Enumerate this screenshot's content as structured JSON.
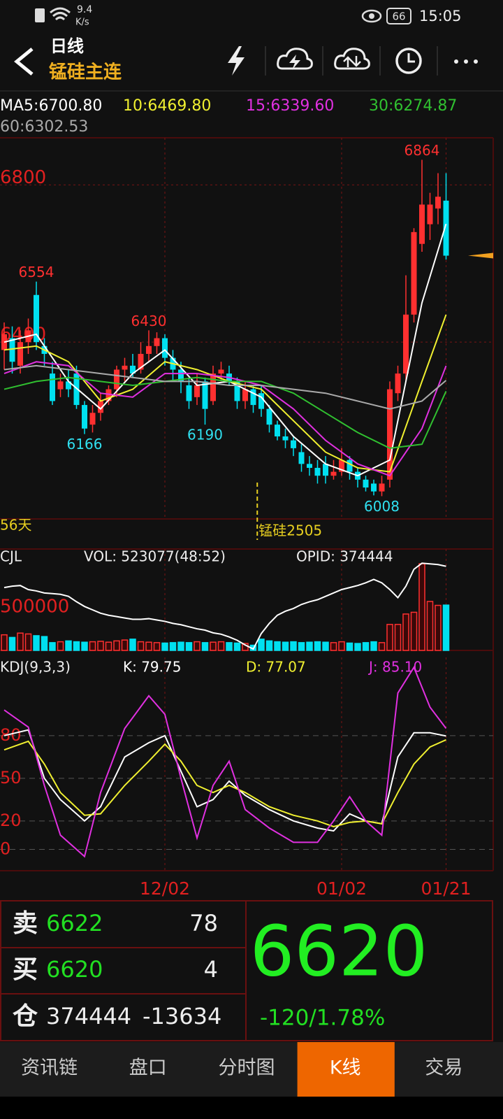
{
  "status_bar": {
    "speed": "9.4",
    "speed_unit": "K/s",
    "battery": "66",
    "time": "15:05"
  },
  "header": {
    "period": "日线",
    "title": "锰硅主连"
  },
  "chart_data": [
    {
      "type": "candlestick",
      "categories": [
        null,
        null,
        null,
        null,
        null,
        null,
        null,
        null,
        null,
        null,
        null,
        null,
        null,
        null,
        null,
        null,
        null,
        null,
        null,
        null,
        "12/02",
        null,
        null,
        null,
        null,
        null,
        null,
        null,
        null,
        null,
        null,
        null,
        null,
        null,
        null,
        null,
        null,
        null,
        null,
        null,
        null,
        null,
        "01/02",
        null,
        null,
        null,
        null,
        null,
        null,
        null,
        null,
        null,
        null,
        null,
        null,
        "01/21"
      ],
      "open": [
        6380,
        6410,
        6340,
        6400,
        6520,
        6390,
        6320,
        6280,
        6300,
        6320,
        6240,
        6190,
        6220,
        6250,
        6280,
        6330,
        6340,
        6330,
        6370,
        6390,
        6410,
        6360,
        6330,
        6290,
        6260,
        6300,
        6250,
        6320,
        6320,
        6300,
        6250,
        6280,
        6270,
        6230,
        6190,
        6160,
        6150,
        6120,
        6090,
        6080,
        6090,
        6060,
        6070,
        6100,
        6070,
        6050,
        6040,
        6020,
        6050,
        6270,
        6320,
        6470,
        6650,
        6700,
        6740,
        6760
      ],
      "close": [
        6420,
        6350,
        6400,
        6430,
        6400,
        6370,
        6250,
        6300,
        6280,
        6240,
        6180,
        6220,
        6250,
        6280,
        6330,
        6340,
        6320,
        6370,
        6390,
        6410,
        6360,
        6330,
        6300,
        6250,
        6290,
        6230,
        6320,
        6330,
        6300,
        6250,
        6280,
        6240,
        6230,
        6190,
        6160,
        6150,
        6130,
        6090,
        6080,
        6060,
        6060,
        6070,
        6100,
        6070,
        6050,
        6030,
        6020,
        6040,
        6280,
        6320,
        6470,
        6680,
        6750,
        6750,
        6770,
        6620
      ],
      "high": [
        6450,
        6440,
        6430,
        6460,
        6554,
        6410,
        6350,
        6320,
        6330,
        6340,
        6250,
        6240,
        6270,
        6290,
        6340,
        6360,
        6370,
        6400,
        6430,
        6425,
        6420,
        6380,
        6350,
        6310,
        6320,
        6310,
        6340,
        6350,
        6340,
        6310,
        6300,
        6290,
        6290,
        6240,
        6200,
        6180,
        6160,
        6140,
        6110,
        6100,
        6110,
        6100,
        6130,
        6110,
        6080,
        6060,
        6050,
        6060,
        6300,
        6340,
        6570,
        6690,
        6864,
        6780,
        6830,
        6830
      ],
      "low": [
        6330,
        6320,
        6320,
        6370,
        6380,
        6340,
        6240,
        6260,
        6260,
        6230,
        6166,
        6170,
        6200,
        6240,
        6260,
        6300,
        6310,
        6320,
        6350,
        6370,
        6340,
        6300,
        6270,
        6230,
        6240,
        6190,
        6240,
        6300,
        6290,
        6230,
        6230,
        6220,
        6210,
        6170,
        6150,
        6130,
        6110,
        6070,
        6060,
        6040,
        6040,
        6050,
        6060,
        6050,
        6030,
        6020,
        6010,
        6008,
        6030,
        6250,
        6300,
        6450,
        6630,
        6660,
        6700,
        6610
      ],
      "up_color": "#ff3030",
      "down_color": "#00e0f0",
      "ylim": [
        5950,
        6920
      ],
      "yticks": [
        6400,
        6800
      ],
      "grid": true,
      "series": [
        {
          "name": "MA5:6700.80",
          "color": "#ffffff",
          "x": [
            0,
            4,
            8,
            12,
            16,
            20,
            24,
            28,
            32,
            36,
            40,
            44,
            48,
            52,
            55
          ],
          "values": [
            6400,
            6420,
            6300,
            6230,
            6320,
            6380,
            6290,
            6300,
            6260,
            6160,
            6090,
            6060,
            6100,
            6500,
            6700.8
          ]
        },
        {
          "name": "10:6469.80",
          "color": "#f0f030",
          "x": [
            0,
            4,
            8,
            12,
            16,
            20,
            24,
            28,
            32,
            36,
            40,
            44,
            48,
            52,
            55
          ],
          "values": [
            6380,
            6390,
            6350,
            6250,
            6280,
            6350,
            6330,
            6300,
            6280,
            6200,
            6120,
            6080,
            6070,
            6300,
            6469.8
          ]
        },
        {
          "name": "15:6339.60",
          "color": "#e030e0",
          "x": [
            0,
            4,
            8,
            12,
            16,
            20,
            24,
            28,
            32,
            36,
            40,
            44,
            48,
            52,
            55
          ],
          "values": [
            6320,
            6350,
            6340,
            6270,
            6260,
            6320,
            6320,
            6310,
            6290,
            6230,
            6150,
            6090,
            6060,
            6180,
            6339.6
          ]
        },
        {
          "name": "30:6274.87",
          "color": "#30c030",
          "x": [
            0,
            4,
            8,
            12,
            16,
            20,
            24,
            28,
            32,
            36,
            40,
            44,
            48,
            52,
            55
          ],
          "values": [
            6280,
            6300,
            6310,
            6300,
            6290,
            6300,
            6310,
            6300,
            6300,
            6270,
            6220,
            6170,
            6130,
            6140,
            6274.87
          ]
        },
        {
          "name": "60:6302.53",
          "color": "#aaaaaa",
          "x": [
            0,
            4,
            8,
            12,
            16,
            20,
            24,
            28,
            32,
            36,
            40,
            44,
            48,
            52,
            55
          ],
          "values": [
            6330,
            6340,
            6330,
            6320,
            6310,
            6300,
            6300,
            6290,
            6290,
            6280,
            6270,
            6250,
            6230,
            6250,
            6302.53
          ]
        }
      ],
      "annotations": [
        {
          "x": 4,
          "value": 6554
        },
        {
          "x": 10,
          "value": 6166
        },
        {
          "x": 18,
          "value": 6430
        },
        {
          "x": 25,
          "value": 6190
        },
        {
          "x": 47,
          "value": 6008
        },
        {
          "x": 52,
          "value": 6864
        }
      ],
      "markers": [
        {
          "x": 31.5,
          "label": "锰硅2505"
        }
      ],
      "period_label": "56天"
    },
    {
      "type": "bar",
      "title": "CJL",
      "ylim": [
        0,
        1170000
      ],
      "yticks": [
        500000
      ],
      "y2lim": [
        250000,
        400000
      ],
      "series": [
        {
          "name": "VOL: 523077(48:52)",
          "values": [
            180000,
            150000,
            200000,
            190000,
            170000,
            160000,
            90000,
            100000,
            110000,
            100000,
            95000,
            100000,
            105000,
            95000,
            110000,
            120000,
            130000,
            100000,
            95000,
            90000,
            85000,
            90000,
            95000,
            90000,
            100000,
            90000,
            95000,
            100000,
            90000,
            85000,
            80000,
            60000,
            130000,
            110000,
            100000,
            95000,
            100000,
            90000,
            95000,
            100000,
            95000,
            90000,
            100000,
            85000,
            80000,
            90000,
            100000,
            90000,
            300000,
            300000,
            420000,
            440000,
            1000000,
            565000,
            520000,
            523077
          ]
        },
        {
          "name": "OPID: 374444",
          "color": "#ffffff",
          "axis": "y2",
          "values": [
            343000,
            345000,
            346000,
            340000,
            338000,
            335000,
            334000,
            333000,
            330000,
            322000,
            315000,
            310000,
            305000,
            302000,
            300000,
            298000,
            296000,
            296000,
            297000,
            295000,
            293000,
            290000,
            288000,
            285000,
            282000,
            280000,
            276000,
            274000,
            270000,
            265000,
            258000,
            252000,
            275000,
            290000,
            302000,
            308000,
            312000,
            318000,
            322000,
            325000,
            330000,
            335000,
            340000,
            343000,
            346000,
            350000,
            355000,
            350000,
            340000,
            328000,
            345000,
            370000,
            379000,
            378000,
            377000,
            374444
          ]
        }
      ]
    },
    {
      "type": "line",
      "title": "KDJ(9,3,3)",
      "ylim": [
        -15,
        135
      ],
      "yticks": [
        80,
        50,
        20,
        0
      ],
      "grid": true,
      "series": [
        {
          "name": "K: 79.75",
          "color": "#ffffff",
          "x": [
            0,
            3,
            5,
            7,
            10,
            12,
            15,
            18,
            20,
            22,
            24,
            26,
            28,
            30,
            33,
            36,
            39,
            41,
            43,
            45,
            47,
            49,
            51,
            53,
            55
          ],
          "values": [
            80,
            84,
            50,
            35,
            20,
            30,
            65,
            75,
            80,
            55,
            30,
            35,
            48,
            38,
            28,
            20,
            15,
            13,
            25,
            20,
            18,
            65,
            82,
            82,
            79.75
          ]
        },
        {
          "name": "D: 77.07",
          "color": "#f0f030",
          "x": [
            0,
            3,
            5,
            7,
            10,
            12,
            15,
            18,
            20,
            22,
            24,
            26,
            28,
            30,
            33,
            36,
            39,
            41,
            43,
            45,
            47,
            49,
            51,
            53,
            55
          ],
          "values": [
            70,
            76,
            60,
            40,
            24,
            25,
            45,
            62,
            74,
            62,
            45,
            40,
            45,
            40,
            30,
            24,
            20,
            16,
            19,
            20,
            18,
            40,
            60,
            72,
            77.07
          ]
        },
        {
          "name": "J: 85.10",
          "color": "#e030e0",
          "x": [
            0,
            3,
            5,
            7,
            10,
            12,
            15,
            18,
            20,
            22,
            24,
            26,
            28,
            30,
            33,
            36,
            39,
            41,
            43,
            45,
            47,
            49,
            51,
            53,
            55
          ],
          "values": [
            98,
            86,
            45,
            10,
            -5,
            40,
            85,
            108,
            95,
            50,
            8,
            45,
            62,
            28,
            15,
            5,
            5,
            20,
            37,
            20,
            10,
            110,
            128,
            100,
            85.1
          ]
        }
      ]
    }
  ],
  "quote": {
    "sell": {
      "label": "卖",
      "price": 6622,
      "volume": 78
    },
    "buy": {
      "label": "买",
      "price": 6620,
      "volume": 4
    },
    "position": {
      "label": "仓",
      "value": 374444,
      "change": -13634
    },
    "last": 6620,
    "change_label": "-120/1.78%"
  },
  "tabs": [
    "资讯链",
    "盘口",
    "分时图",
    "K线",
    "交易"
  ],
  "active_tab": 3
}
